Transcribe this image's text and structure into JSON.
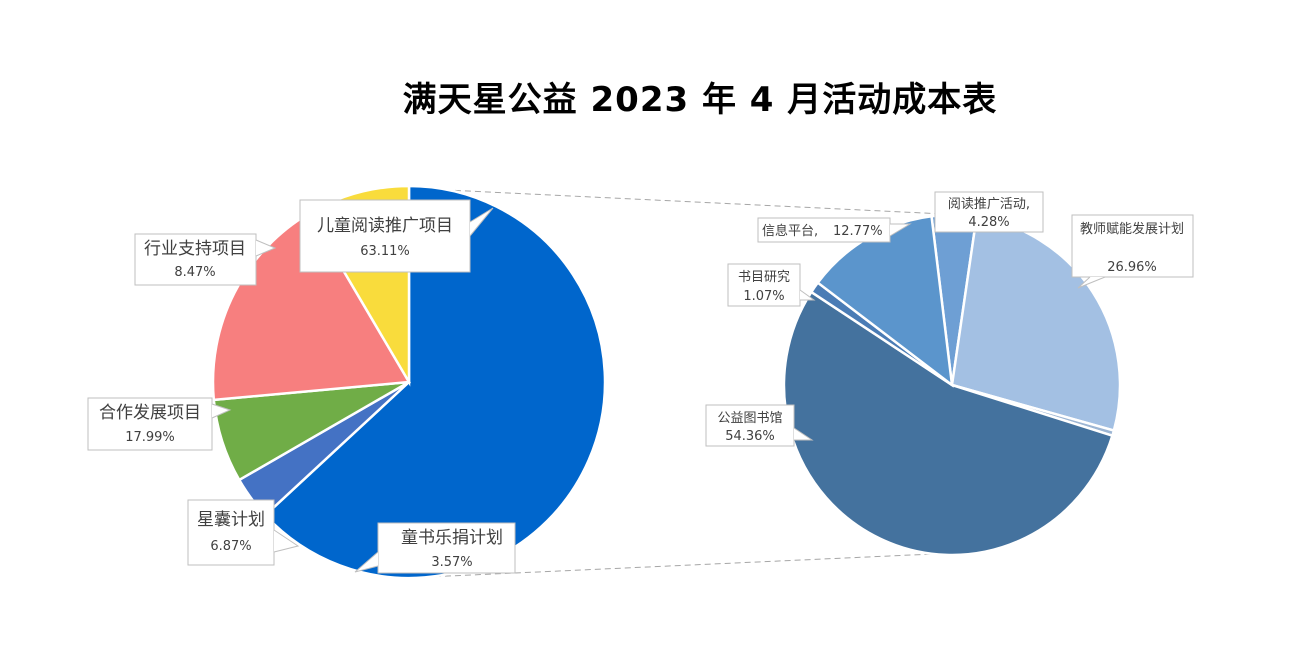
{
  "title": "满天星公益 2023 年 4 月活动成本表",
  "chart_data": [
    {
      "type": "pie",
      "name": "main",
      "slices": [
        {
          "label": "儿童阅读推广项目",
          "pct": "63.11%",
          "value": 63.11,
          "color": "#0066CC"
        },
        {
          "label": "童书乐捐计划",
          "pct": "3.57%",
          "value": 3.57,
          "color": "#4472C4"
        },
        {
          "label": "星囊计划",
          "pct": "6.87%",
          "value": 6.87,
          "color": "#70AD47"
        },
        {
          "label": "合作发展项目",
          "pct": "17.99%",
          "value": 17.99,
          "color": "#F77F7F"
        },
        {
          "label": "行业支持项目",
          "pct": "8.47%",
          "value": 8.47,
          "color": "#F9DC3C"
        }
      ]
    },
    {
      "type": "pie",
      "name": "breakdown",
      "parent": "儿童阅读推广项目",
      "slices": [
        {
          "label": "阅读推广活动,",
          "pct": "4.28%",
          "value": 4.28,
          "color": "#6E9FD4"
        },
        {
          "label": "教师赋能发展计划",
          "pct": "26.96%",
          "value": 26.96,
          "color": "#A3C0E3"
        },
        {
          "label": "",
          "pct": "",
          "value": 0.5,
          "color": "#9CB5D3"
        },
        {
          "label": "公益图书馆",
          "pct": "54.36%",
          "value": 54.36,
          "color": "#44729E"
        },
        {
          "label": "书目研究",
          "pct": "1.07%",
          "value": 1.07,
          "color": "#4A7CB5"
        },
        {
          "label": "信息平台,",
          "pct": "12.77%",
          "value": 12.77,
          "color": "#5B95CC"
        }
      ]
    }
  ]
}
